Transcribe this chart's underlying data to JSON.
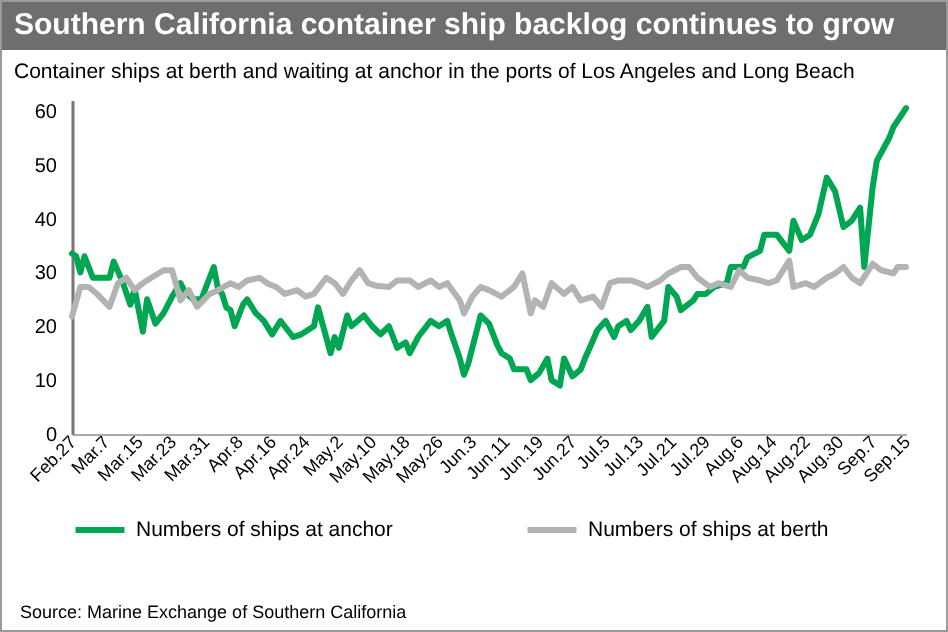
{
  "chart_data": {
    "type": "line",
    "title": "Southern California container ship backlog continues to grow",
    "subtitle": "Container ships at berth and waiting at anchor in the ports of Los Angeles and Long Beach",
    "annotations": [
      "Source: Marine Exchange of Southern California"
    ],
    "series": [
      {
        "name": "Numbers of ships at anchor",
        "color": "#00a651",
        "x": [
          "--02-27",
          "--02-28",
          "--03-01",
          "--03-02",
          "--03-04",
          "--03-08",
          "--03-09",
          "--03-11",
          "--03-13",
          "--03-14",
          "--03-16",
          "--03-17",
          "--03-19",
          "--03-21",
          "--03-23",
          "--03-25",
          "--03-26",
          "--03-28",
          "--03-30",
          "--04-02",
          "--04-03",
          "--04-04",
          "--04-05",
          "--04-06",
          "--04-07",
          "--04-09",
          "--04-10",
          "--04-12",
          "--04-14",
          "--04-16",
          "--04-18",
          "--04-19",
          "--04-21",
          "--04-23",
          "--04-26",
          "--04-27",
          "--04-30",
          "--05-01",
          "--05-02",
          "--05-04",
          "--05-05",
          "--05-08",
          "--05-10",
          "--05-12",
          "--05-14",
          "--05-16",
          "--05-18",
          "--05-19",
          "--05-21",
          "--05-24",
          "--05-26",
          "--05-28",
          "--05-29",
          "--05-31",
          "--06-01",
          "--06-02",
          "--06-03",
          "--06-05",
          "--06-07",
          "--06-09",
          "--06-10",
          "--06-12",
          "--06-13",
          "--06-16",
          "--06-17",
          "--06-19",
          "--06-21",
          "--06-22",
          "--06-24",
          "--06-25",
          "--06-27",
          "--06-29",
          "--06-30",
          "--07-02",
          "--07-03",
          "--07-05",
          "--07-07",
          "--07-08",
          "--07-10",
          "--07-11",
          "--07-13",
          "--07-15",
          "--07-16",
          "--07-19",
          "--07-20",
          "--07-22",
          "--07-23",
          "--07-26",
          "--07-27",
          "--07-29",
          "--07-31",
          "--08-03",
          "--08-04",
          "--08-07",
          "--08-08",
          "--08-11",
          "--08-12",
          "--08-15",
          "--08-16",
          "--08-18",
          "--08-19",
          "--08-21",
          "--08-23",
          "--08-25",
          "--08-27",
          "--08-29",
          "--08-31",
          "--09-02",
          "--09-04",
          "--09-05",
          "--09-07",
          "--09-08",
          "--09-11",
          "--09-12",
          "--09-14",
          "--09-15"
        ],
        "values": [
          33.5,
          33,
          30,
          33,
          29,
          29,
          32,
          28.5,
          24,
          27,
          19,
          25,
          20.5,
          22.5,
          25.5,
          28,
          26.5,
          25,
          25,
          31,
          27,
          26,
          23.5,
          23,
          20,
          24,
          25,
          22.5,
          21,
          18.5,
          21,
          20,
          18,
          18.5,
          20,
          23.5,
          15,
          18,
          16,
          22,
          20,
          22,
          20,
          18.5,
          20,
          16,
          17,
          15,
          18,
          21,
          20,
          21,
          18.5,
          14,
          11,
          13,
          16,
          22,
          20.5,
          16.5,
          15,
          14,
          12,
          12,
          10,
          11.3,
          14,
          10,
          9,
          14,
          10.7,
          12,
          14,
          17.5,
          19.3,
          21,
          18,
          20,
          21,
          19.3,
          21,
          23.6,
          18,
          21,
          27.3,
          25.5,
          23,
          24.8,
          26,
          26,
          27.3,
          28,
          31,
          31,
          32.8,
          34,
          37,
          37,
          36,
          34,
          39.6,
          36,
          37,
          40.8,
          47.6,
          45,
          38.4,
          39.6,
          42,
          31,
          45.8,
          50.7,
          55,
          57,
          59.3,
          60.5
        ]
      },
      {
        "name": "Numbers of ships at berth",
        "color": "#b3b3b3",
        "x": [
          "--02-27",
          "--03-01",
          "--03-03",
          "--03-05",
          "--03-08",
          "--03-10",
          "--03-12",
          "--03-14",
          "--03-16",
          "--03-18",
          "--03-21",
          "--03-23",
          "--03-25",
          "--03-27",
          "--03-29",
          "--04-01",
          "--04-03",
          "--04-06",
          "--04-08",
          "--04-10",
          "--04-13",
          "--04-15",
          "--04-17",
          "--04-19",
          "--04-22",
          "--04-24",
          "--04-26",
          "--04-29",
          "--05-01",
          "--05-03",
          "--05-05",
          "--05-07",
          "--05-09",
          "--05-11",
          "--05-14",
          "--05-16",
          "--05-19",
          "--05-21",
          "--05-24",
          "--05-26",
          "--05-28",
          "--05-31",
          "--06-01",
          "--06-03",
          "--06-05",
          "--06-07",
          "--06-10",
          "--06-13",
          "--06-15",
          "--06-17",
          "--06-18",
          "--06-20",
          "--06-22",
          "--06-25",
          "--06-27",
          "--06-29",
          "--07-02",
          "--07-04",
          "--07-06",
          "--07-08",
          "--07-11",
          "--07-13",
          "--07-15",
          "--07-18",
          "--07-20",
          "--07-23",
          "--07-25",
          "--07-27",
          "--07-30",
          "--08-01",
          "--08-04",
          "--08-06",
          "--08-08",
          "--08-11",
          "--08-13",
          "--08-15",
          "--08-18",
          "--08-19",
          "--08-22",
          "--08-24",
          "--08-27",
          "--08-29",
          "--08-31",
          "--09-02",
          "--09-04",
          "--09-07",
          "--09-09",
          "--09-12",
          "--09-13",
          "--09-15"
        ],
        "values": [
          21.8,
          27.3,
          27.3,
          26,
          23.6,
          28,
          29,
          26.7,
          28,
          29,
          30.4,
          30.4,
          24.8,
          26.7,
          23.6,
          26,
          26.7,
          28,
          27.3,
          28.5,
          29,
          27.9,
          27.3,
          26,
          26.7,
          25.5,
          26,
          29,
          28,
          26,
          28.5,
          30.4,
          28,
          27.5,
          27.3,
          28.5,
          28.5,
          27.3,
          28.5,
          27.3,
          28,
          24.8,
          22.4,
          25.5,
          27.3,
          26.7,
          25.5,
          27.3,
          29.8,
          22.4,
          24.8,
          23.6,
          28,
          26,
          27.3,
          24.8,
          25.5,
          23.6,
          28,
          28.5,
          28.5,
          28,
          27.3,
          28.5,
          29.8,
          31,
          31,
          29,
          27.3,
          28,
          27.3,
          30.4,
          29,
          28.5,
          28,
          28.5,
          32.2,
          27.3,
          28,
          27.3,
          29,
          29.8,
          31,
          29,
          28,
          31.6,
          30.4,
          29.8,
          31,
          31
        ]
      }
    ],
    "xlim": [
      "--02-27",
      "--09-15"
    ],
    "xticks": [
      {
        "value": "--02-27",
        "label": "Feb.27"
      },
      {
        "value": "--03-07",
        "label": "Mar.7"
      },
      {
        "value": "--03-15",
        "label": "Mar.15"
      },
      {
        "value": "--03-23",
        "label": "Mar.23"
      },
      {
        "value": "--03-31",
        "label": "Mar.31"
      },
      {
        "value": "--04-08",
        "label": "Apr.8"
      },
      {
        "value": "--04-16",
        "label": "Apr.16"
      },
      {
        "value": "--04-24",
        "label": "Apr.24"
      },
      {
        "value": "--05-02",
        "label": "May.2"
      },
      {
        "value": "--05-10",
        "label": "May.10"
      },
      {
        "value": "--05-18",
        "label": "May.18"
      },
      {
        "value": "--05-26",
        "label": "May.26"
      },
      {
        "value": "--06-03",
        "label": "Jun.3"
      },
      {
        "value": "--06-11",
        "label": "Jun.11"
      },
      {
        "value": "--06-19",
        "label": "Jun.19"
      },
      {
        "value": "--06-27",
        "label": "Jun.27"
      },
      {
        "value": "--07-05",
        "label": "Jul.5"
      },
      {
        "value": "--07-13",
        "label": "Jul.13"
      },
      {
        "value": "--07-21",
        "label": "Jul.21"
      },
      {
        "value": "--07-29",
        "label": "Jul.29"
      },
      {
        "value": "--08-06",
        "label": "Aug.6"
      },
      {
        "value": "--08-14",
        "label": "Aug.14"
      },
      {
        "value": "--08-22",
        "label": "Aug.22"
      },
      {
        "value": "--08-30",
        "label": "Aug.30"
      },
      {
        "value": "--09-07",
        "label": "Sep.7"
      },
      {
        "value": "--09-15",
        "label": "Sep.15"
      }
    ],
    "ylim": [
      0,
      62
    ],
    "yticks": [
      0,
      10,
      20,
      30,
      40,
      50,
      60
    ],
    "grid": false,
    "legend": "bottom",
    "marker": "none",
    "line_style": "solid"
  }
}
